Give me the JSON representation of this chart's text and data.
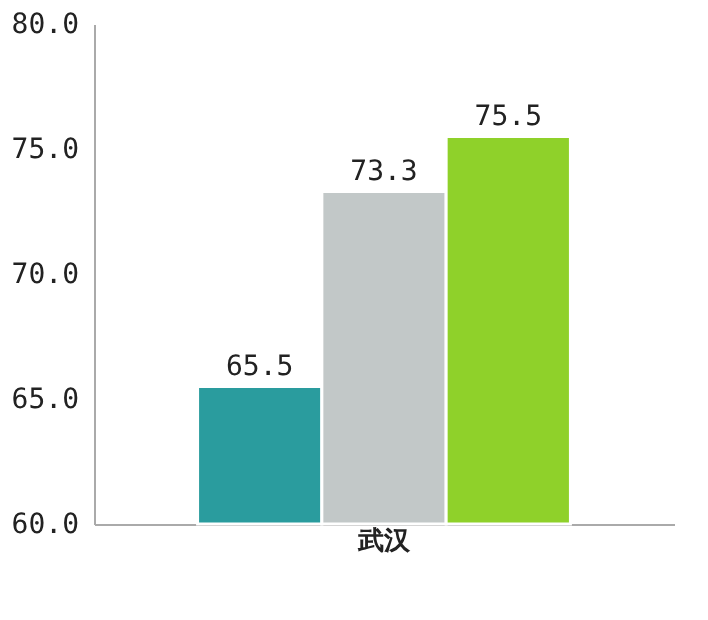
{
  "chart_data": {
    "type": "bar",
    "categories": [
      "武汉"
    ],
    "series": [
      {
        "color": "#2a9c9e",
        "values": [
          65.5
        ]
      },
      {
        "color": "#c2c8c8",
        "values": [
          73.3
        ]
      },
      {
        "color": "#8fd12a",
        "values": [
          75.5
        ]
      }
    ],
    "ylim": [
      60,
      80
    ],
    "yticks": [
      {
        "value": 60,
        "label": "60.0"
      },
      {
        "value": 65,
        "label": "65.0"
      },
      {
        "value": 70,
        "label": "70.0"
      },
      {
        "value": 75,
        "label": "75.0"
      },
      {
        "value": 80,
        "label": "80.0"
      }
    ],
    "data_labels": true,
    "grid": false
  }
}
